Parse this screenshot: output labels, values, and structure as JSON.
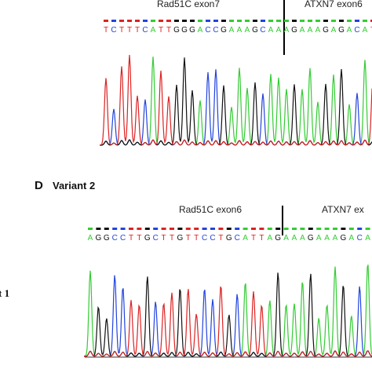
{
  "panel_c": {
    "left_label": "Rad51C exon7",
    "right_label": "ATXN7  exon6",
    "bases": [
      "T",
      "C",
      "T",
      "T",
      "T",
      "C",
      "A",
      "T",
      "T",
      "G",
      "G",
      "G",
      "A",
      "C",
      "C",
      "G",
      "A",
      "A",
      "A",
      "G",
      "C",
      "A",
      "A",
      "A",
      "G",
      "A",
      "A",
      "A",
      "G",
      "A",
      "G",
      "A",
      "C",
      "A",
      "T"
    ]
  },
  "panel_d": {
    "letter": "D",
    "title": "Variant 2",
    "left_label": "Rad51C exon6",
    "right_label": "ATXN7 ex",
    "bases": [
      "A",
      "G",
      "G",
      "C",
      "C",
      "T",
      "T",
      "G",
      "C",
      "T",
      "T",
      "G",
      "T",
      "T",
      "C",
      "C",
      "T",
      "G",
      "C",
      "A",
      "T",
      "T",
      "A",
      "G",
      "A",
      "A",
      "A",
      "G",
      "A",
      "A",
      "A",
      "G",
      "A",
      "C",
      "A"
    ]
  },
  "side_label": "t 1"
}
